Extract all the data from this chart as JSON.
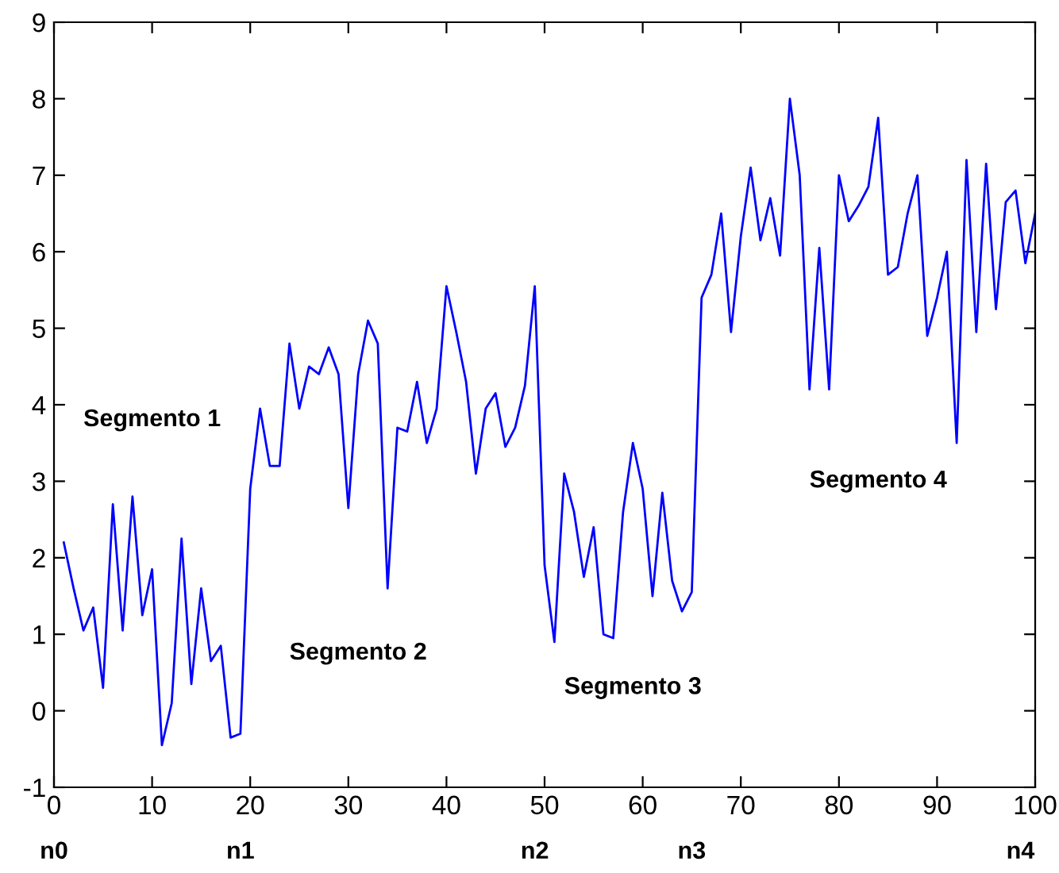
{
  "chart_data": {
    "type": "line",
    "x": [
      1,
      2,
      3,
      4,
      5,
      6,
      7,
      8,
      9,
      10,
      11,
      12,
      13,
      14,
      15,
      16,
      17,
      18,
      19,
      20,
      21,
      22,
      23,
      24,
      25,
      26,
      27,
      28,
      29,
      30,
      31,
      32,
      33,
      34,
      35,
      36,
      37,
      38,
      39,
      40,
      41,
      42,
      43,
      44,
      45,
      46,
      47,
      48,
      49,
      50,
      51,
      52,
      53,
      54,
      55,
      56,
      57,
      58,
      59,
      60,
      61,
      62,
      63,
      64,
      65,
      66,
      67,
      68,
      69,
      70,
      71,
      72,
      73,
      74,
      75,
      76,
      77,
      78,
      79,
      80,
      81,
      82,
      83,
      84,
      85,
      86,
      87,
      88,
      89,
      90,
      91,
      92,
      93,
      94,
      95,
      96,
      97,
      98,
      99,
      100
    ],
    "series": [
      {
        "color": "#0000ff",
        "values": [
          2.2,
          1.6,
          1.05,
          1.35,
          0.3,
          2.7,
          1.05,
          2.8,
          1.25,
          1.85,
          -0.45,
          0.1,
          2.25,
          0.35,
          1.6,
          0.65,
          0.85,
          -0.35,
          -0.3,
          2.9,
          3.95,
          3.2,
          3.2,
          4.8,
          3.95,
          4.5,
          4.4,
          4.75,
          4.4,
          2.65,
          4.4,
          5.1,
          4.8,
          1.6,
          3.7,
          3.65,
          4.3,
          3.5,
          3.95,
          5.55,
          4.95,
          4.3,
          3.1,
          3.95,
          4.15,
          3.45,
          3.7,
          4.25,
          5.55,
          1.9,
          0.9,
          3.1,
          2.6,
          1.75,
          2.4,
          1.0,
          0.95,
          2.6,
          3.5,
          2.9,
          1.5,
          2.85,
          1.7,
          1.3,
          1.55,
          5.4,
          5.7,
          6.5,
          4.95,
          6.2,
          7.1,
          6.15,
          6.7,
          5.95,
          8.0,
          7.0,
          4.2,
          6.05,
          4.2,
          7.0,
          6.4,
          6.6,
          6.85,
          7.75,
          5.7,
          5.8,
          6.5,
          7.0,
          4.9,
          5.4,
          6.0,
          3.5,
          7.2,
          4.95,
          7.15,
          5.25,
          6.65,
          6.8,
          5.85,
          6.5
        ]
      }
    ],
    "xlim": [
      0,
      100
    ],
    "xticks": [
      0,
      10,
      20,
      30,
      40,
      50,
      60,
      70,
      80,
      90,
      100
    ],
    "ylim": [
      -1,
      9
    ],
    "yticks": [
      -1,
      0,
      1,
      2,
      3,
      4,
      5,
      6,
      7,
      8,
      9
    ],
    "grid": false,
    "marker": "none",
    "line_style": "solid",
    "annotations": [
      "Segmento 1",
      "Segmento 2",
      "Segmento 3",
      "Segmento 4",
      "n0",
      "n1",
      "n2",
      "n3",
      "n4"
    ]
  }
}
